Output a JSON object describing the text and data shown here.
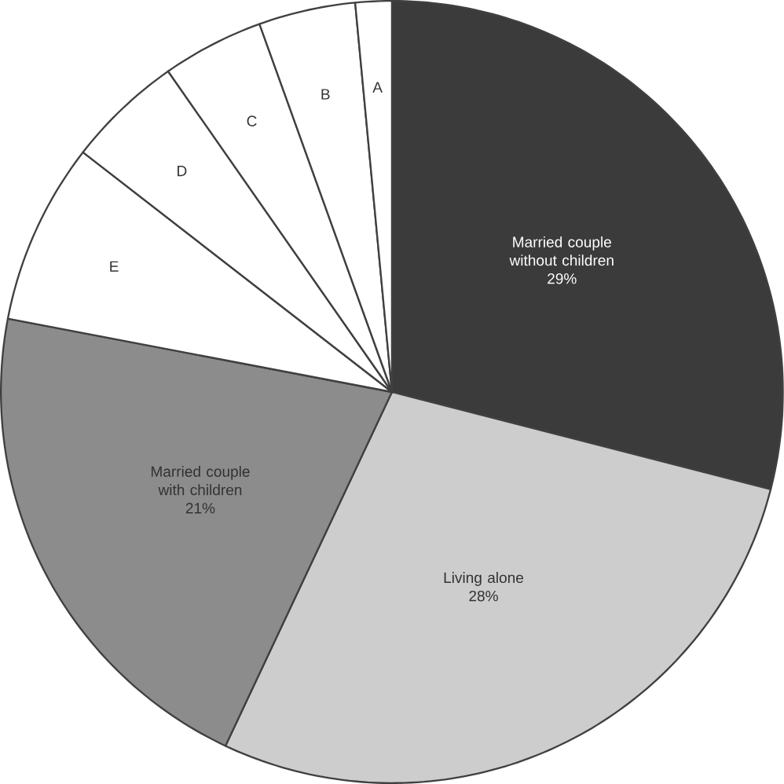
{
  "chart_data": {
    "type": "pie",
    "categories": [
      "Married couple without children",
      "Living alone",
      "Married couple with children",
      "E",
      "D",
      "C",
      "B",
      "A"
    ],
    "values": [
      29,
      28,
      21,
      7.5,
      4.8,
      4.2,
      4,
      1.5
    ],
    "value_labels": [
      "29%",
      "28%",
      "21%",
      null,
      null,
      null,
      null,
      null
    ],
    "colors": [
      "#3b3b3b",
      "#cdcdcd",
      "#8c8c8c",
      "#ffffff",
      "#ffffff",
      "#ffffff",
      "#ffffff",
      "#ffffff"
    ]
  }
}
